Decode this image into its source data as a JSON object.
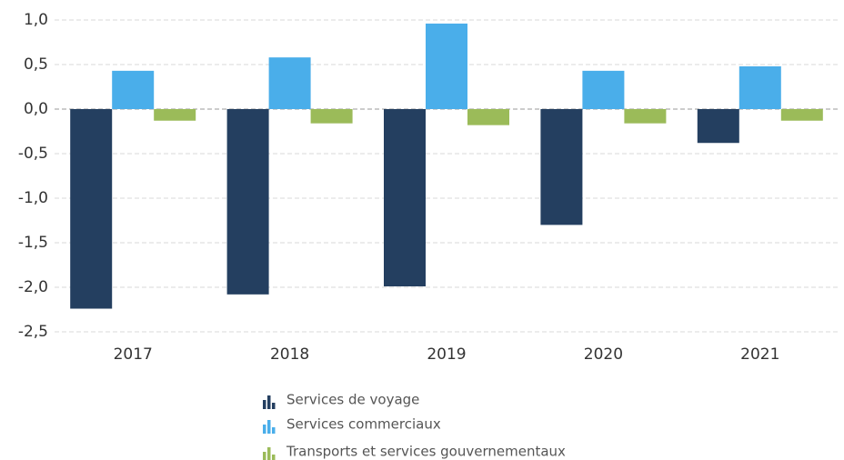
{
  "chart_data": {
    "type": "bar",
    "categories": [
      "2017",
      "2018",
      "2019",
      "2020",
      "2021"
    ],
    "series": [
      {
        "name": "Services de voyage",
        "color": "#243f60",
        "values": [
          -2.24,
          -2.08,
          -1.99,
          -1.3,
          -0.38
        ]
      },
      {
        "name": "Services commerciaux",
        "color": "#4aaeea",
        "values": [
          0.43,
          0.58,
          0.96,
          0.43,
          0.48
        ]
      },
      {
        "name": "Transports et services gouvernementaux",
        "color": "#9bbb59",
        "values": [
          -0.13,
          -0.16,
          -0.18,
          -0.16,
          -0.13
        ]
      }
    ],
    "ylim": [
      -2.5,
      1.0
    ],
    "yticks": [
      {
        "value": 1.0,
        "label": "1,0"
      },
      {
        "value": 0.5,
        "label": "0,5"
      },
      {
        "value": 0.0,
        "label": "0,0"
      },
      {
        "value": -0.5,
        "label": "-0,5"
      },
      {
        "value": -1.0,
        "label": "-1,0"
      },
      {
        "value": -1.5,
        "label": "-1,5"
      },
      {
        "value": -2.0,
        "label": "-2,0"
      },
      {
        "value": -2.5,
        "label": "-2,5"
      }
    ],
    "grid": true,
    "legend": "bottom"
  }
}
